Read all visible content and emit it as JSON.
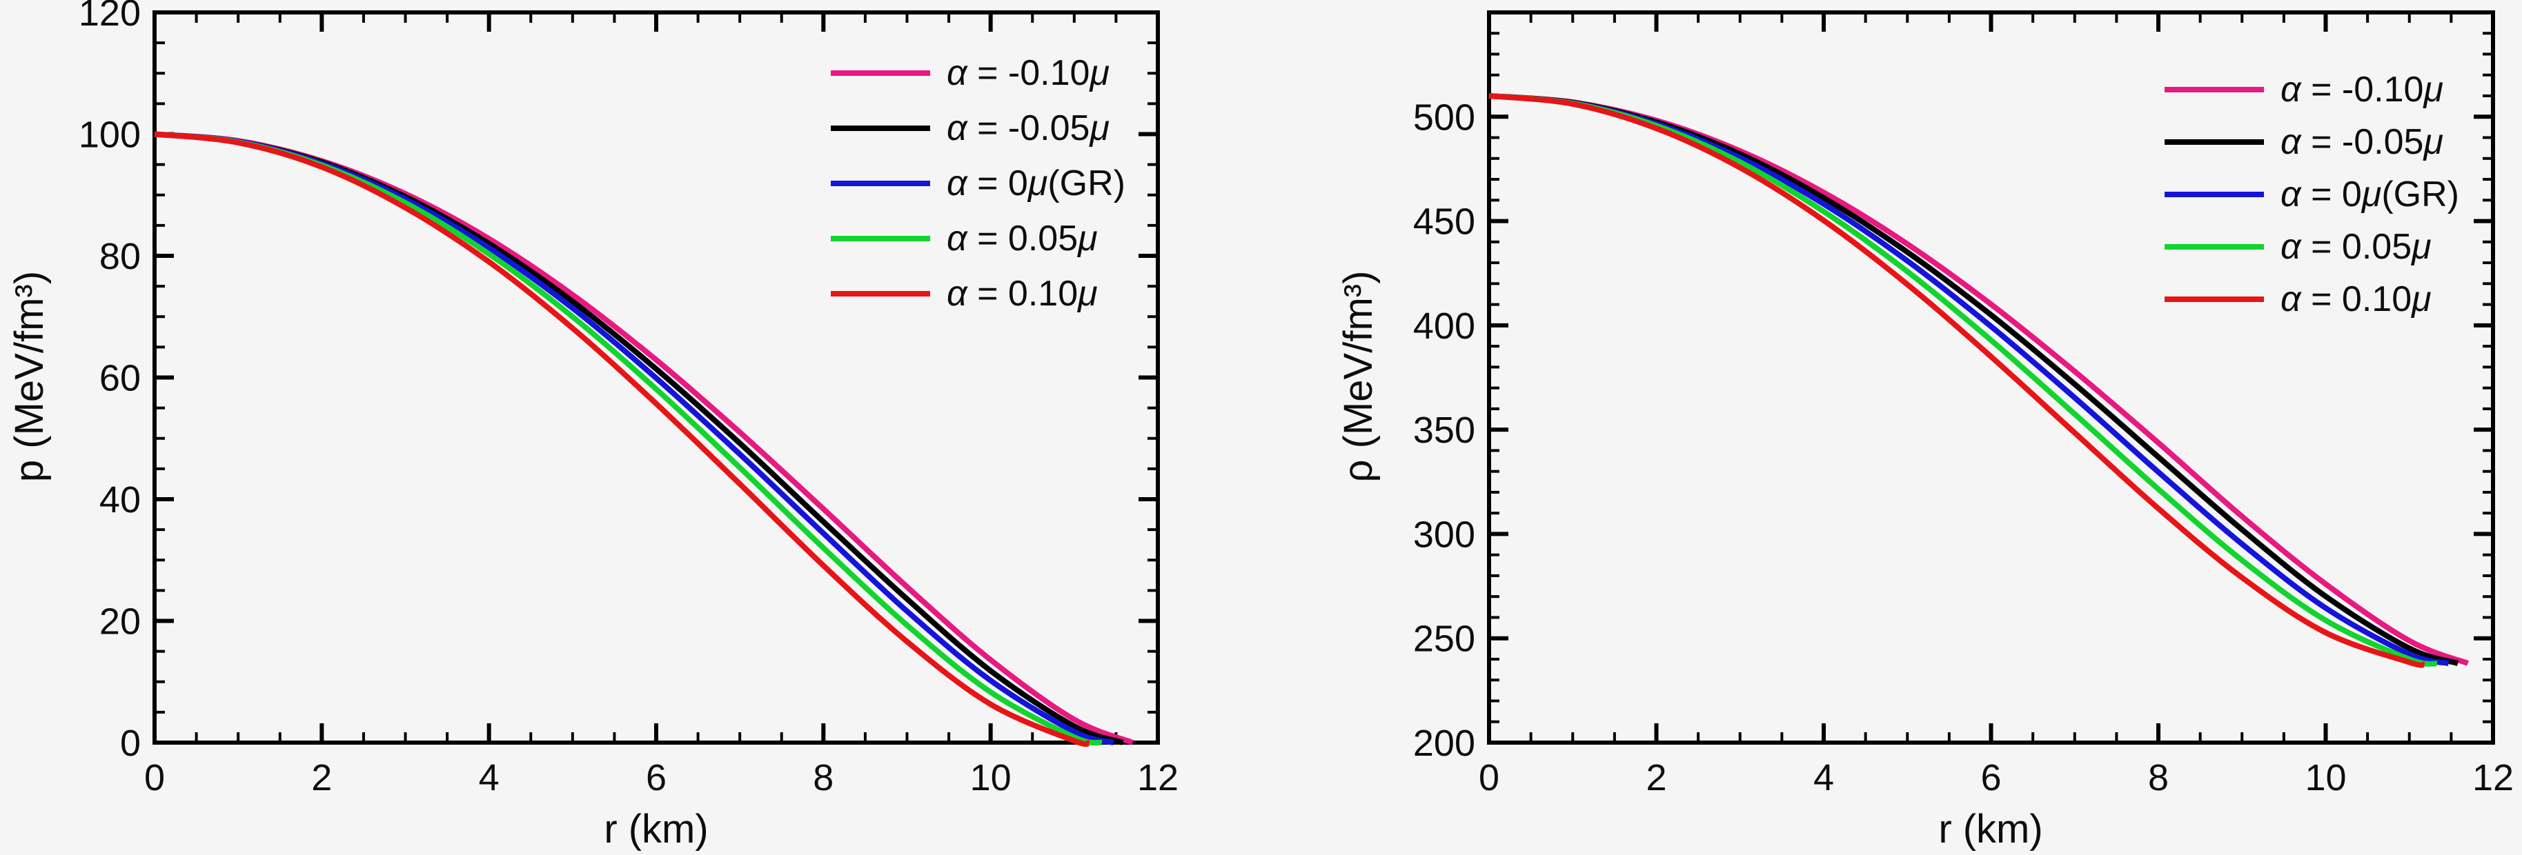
{
  "page": {
    "background_color": "#f5f5f6",
    "description": "Two-panel line chart: radial pressure and energy-density profiles of a star for five coupling values"
  },
  "chart_data": [
    {
      "type": "line",
      "title": "",
      "xlabel": "r (km)",
      "ylabel": "p (MeV/fm³)",
      "xlim": [
        0,
        12
      ],
      "ylim": [
        0,
        120
      ],
      "grid": false,
      "legend_position": "upper-right-inside",
      "x_majors": [
        0,
        2,
        4,
        6,
        8,
        10,
        12
      ],
      "x_labels": [
        "0",
        "2",
        "4",
        "6",
        "8",
        "10",
        "12"
      ],
      "x_minor_step": 0.5,
      "y_majors": [
        0,
        20,
        40,
        60,
        80,
        100,
        120
      ],
      "y_labels": [
        "0",
        "20",
        "40",
        "60",
        "80",
        "100",
        "120"
      ],
      "y_minor_step": 5,
      "series": [
        {
          "name": "α = -0.10μ",
          "color": "#E81980",
          "points": [
            [
              0,
              100
            ],
            [
              1,
              98.9
            ],
            [
              2,
              95.6
            ],
            [
              3,
              90.2
            ],
            [
              4,
              82.8
            ],
            [
              5,
              73.6
            ],
            [
              6,
              62.9
            ],
            [
              7,
              51.0
            ],
            [
              8,
              38.4
            ],
            [
              9,
              25.6
            ],
            [
              10,
              13.6
            ],
            [
              11,
              3.8
            ],
            [
              11.7,
              0
            ]
          ]
        },
        {
          "name": "α = -0.05μ",
          "color": "#000000",
          "points": [
            [
              0,
              100
            ],
            [
              1,
              98.8
            ],
            [
              2,
              95.4
            ],
            [
              3,
              89.7
            ],
            [
              4,
              82.0
            ],
            [
              5,
              72.5
            ],
            [
              6,
              61.4
            ],
            [
              7,
              49.2
            ],
            [
              8,
              36.3
            ],
            [
              9,
              23.6
            ],
            [
              10,
              11.8
            ],
            [
              11,
              2.7
            ],
            [
              11.58,
              0
            ]
          ]
        },
        {
          "name": "α = 0μ(GR)",
          "color": "#1414DC",
          "points": [
            [
              0,
              100
            ],
            [
              1,
              98.8
            ],
            [
              2,
              95.2
            ],
            [
              3,
              89.3
            ],
            [
              4,
              81.3
            ],
            [
              5,
              71.4
            ],
            [
              6,
              59.9
            ],
            [
              7,
              47.4
            ],
            [
              8,
              34.4
            ],
            [
              9,
              21.6
            ],
            [
              10,
              10.2
            ],
            [
              11,
              1.8
            ],
            [
              11.47,
              0
            ]
          ]
        },
        {
          "name": "α = 0.05μ",
          "color": "#12D42E",
          "points": [
            [
              0,
              100
            ],
            [
              1,
              98.7
            ],
            [
              2,
              94.9
            ],
            [
              3,
              88.7
            ],
            [
              4,
              80.3
            ],
            [
              5,
              70.0
            ],
            [
              6,
              58.1
            ],
            [
              7,
              45.2
            ],
            [
              8,
              32.0
            ],
            [
              9,
              19.3
            ],
            [
              10,
              8.3
            ],
            [
              11,
              0.9
            ],
            [
              11.33,
              0
            ]
          ]
        },
        {
          "name": "α = 0.10μ",
          "color": "#E81416",
          "points": [
            [
              0,
              100
            ],
            [
              1,
              98.6
            ],
            [
              2,
              94.6
            ],
            [
              3,
              87.9
            ],
            [
              4,
              79.0
            ],
            [
              5,
              68.1
            ],
            [
              6,
              55.7
            ],
            [
              7,
              42.5
            ],
            [
              8,
              29.1
            ],
            [
              9,
              16.6
            ],
            [
              10,
              6.3
            ],
            [
              11,
              0.3
            ],
            [
              11.18,
              0
            ]
          ]
        }
      ]
    },
    {
      "type": "line",
      "title": "",
      "xlabel": "r (km)",
      "ylabel": "ρ (MeV/fm³)",
      "xlim": [
        0,
        12
      ],
      "ylim": [
        200,
        550
      ],
      "grid": false,
      "legend_position": "upper-right-inside",
      "x_majors": [
        0,
        2,
        4,
        6,
        8,
        10,
        12
      ],
      "x_labels": [
        "0",
        "2",
        "4",
        "6",
        "8",
        "10",
        "12"
      ],
      "x_minor_step": 0.5,
      "y_majors": [
        200,
        250,
        300,
        350,
        400,
        450,
        500,
        550
      ],
      "y_labels": [
        "200",
        "250",
        "300",
        "350",
        "400",
        "450",
        "500",
        ""
      ],
      "y_minor_step": 10,
      "series": [
        {
          "name": "α = -0.10μ",
          "color": "#E81980",
          "points": [
            [
              0,
              510
            ],
            [
              1,
              507.0
            ],
            [
              2,
              498.2
            ],
            [
              3,
              483.6
            ],
            [
              4,
              463.7
            ],
            [
              5,
              439.0
            ],
            [
              6,
              410.1
            ],
            [
              7,
              377.9
            ],
            [
              8,
              343.7
            ],
            [
              9,
              308.4
            ],
            [
              10,
              276.0
            ],
            [
              11,
              248.8
            ],
            [
              11.7,
              238
            ]
          ]
        },
        {
          "name": "α = -0.05μ",
          "color": "#000000",
          "points": [
            [
              0,
              510
            ],
            [
              1,
              506.8
            ],
            [
              2,
              497.4
            ],
            [
              3,
              482.1
            ],
            [
              4,
              461.1
            ],
            [
              5,
              435.1
            ],
            [
              6,
              405.0
            ],
            [
              7,
              371.8
            ],
            [
              8,
              336.9
            ],
            [
              9,
              302.1
            ],
            [
              10,
              270.1
            ],
            [
              11,
              245.2
            ],
            [
              11.58,
              238
            ]
          ]
        },
        {
          "name": "α = 0μ(GR)",
          "color": "#1414DC",
          "points": [
            [
              0,
              510
            ],
            [
              1,
              506.6
            ],
            [
              2,
              496.6
            ],
            [
              3,
              480.3
            ],
            [
              4,
              458.2
            ],
            [
              5,
              430.9
            ],
            [
              6,
              399.5
            ],
            [
              7,
              365.3
            ],
            [
              8,
              329.7
            ],
            [
              9,
              295.2
            ],
            [
              10,
              264.5
            ],
            [
              11,
              242.4
            ],
            [
              11.47,
              238
            ]
          ]
        },
        {
          "name": "α = 0.05μ",
          "color": "#12D42E",
          "points": [
            [
              0,
              510
            ],
            [
              1,
              506.4
            ],
            [
              2,
              495.7
            ],
            [
              3,
              478.2
            ],
            [
              4,
              454.6
            ],
            [
              5,
              425.8
            ],
            [
              6,
              392.9
            ],
            [
              7,
              357.5
            ],
            [
              8,
              321.5
            ],
            [
              9,
              287.4
            ],
            [
              10,
              258.6
            ],
            [
              11,
              240.0
            ],
            [
              11.33,
              237.8
            ]
          ]
        },
        {
          "name": "α = 0.10μ",
          "color": "#E81416",
          "points": [
            [
              0,
              510
            ],
            [
              1,
              506.1
            ],
            [
              2,
              494.4
            ],
            [
              3,
              475.6
            ],
            [
              4,
              450.3
            ],
            [
              5,
              419.6
            ],
            [
              6,
              385.0
            ],
            [
              7,
              348.5
            ],
            [
              8,
              312.2
            ],
            [
              9,
              279.1
            ],
            [
              10,
              252.7
            ],
            [
              11,
              238.5
            ],
            [
              11.18,
              237.5
            ]
          ]
        }
      ]
    }
  ]
}
